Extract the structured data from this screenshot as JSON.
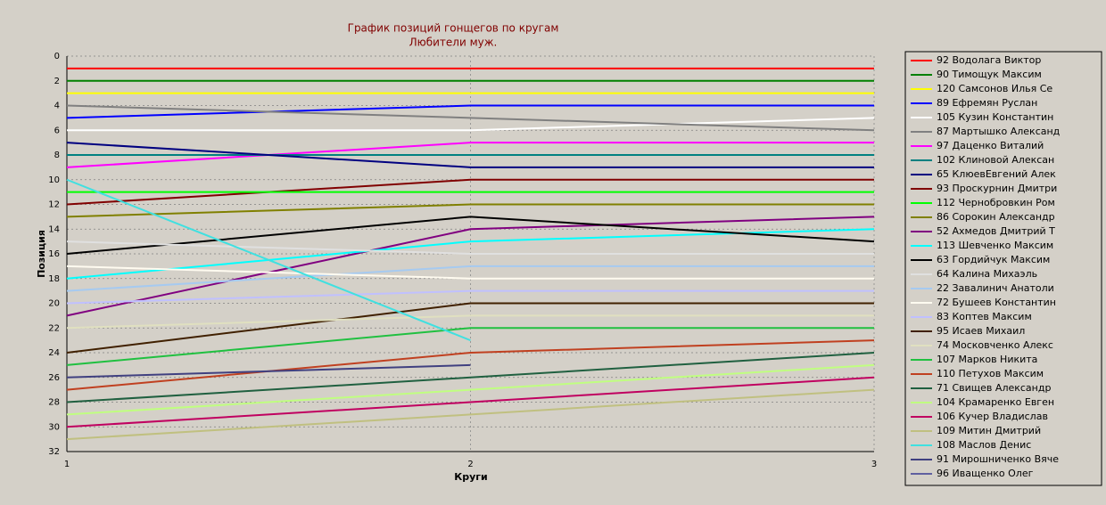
{
  "chart_data": {
    "type": "line",
    "title": "График позиций гонщегов по кругам",
    "subtitle": "Любители муж.",
    "x_label": "Круги",
    "y_label": "Позиция",
    "x": [
      1,
      2,
      3
    ],
    "xlim": [
      1,
      3
    ],
    "xticks": [
      1,
      2,
      3
    ],
    "ylim": [
      32,
      0
    ],
    "yticks": [
      0,
      2,
      4,
      6,
      8,
      10,
      12,
      14,
      16,
      18,
      20,
      22,
      24,
      26,
      28,
      30,
      32
    ],
    "grid": true,
    "legend": "right",
    "series": [
      {
        "name": "92 Водолага Виктор",
        "color": "#ff0000",
        "values": [
          1,
          1,
          1
        ]
      },
      {
        "name": "90 Тимощук Максим",
        "color": "#008000",
        "values": [
          2,
          2,
          2
        ]
      },
      {
        "name": "120 Самсонов Илья Се",
        "color": "#ffff00",
        "values": [
          3,
          3,
          3
        ]
      },
      {
        "name": "89 Ефремян Руслан",
        "color": "#0000ff",
        "values": [
          5,
          4,
          4
        ]
      },
      {
        "name": "105 Кузин Константин",
        "color": "#ffffff",
        "values": [
          6,
          6,
          5
        ]
      },
      {
        "name": "87 Мартышко Александ",
        "color": "#808080",
        "values": [
          4,
          5,
          6
        ]
      },
      {
        "name": "97 Даценко Виталий",
        "color": "#ff00ff",
        "values": [
          9,
          7,
          7
        ]
      },
      {
        "name": "102 Клиновой Алексан",
        "color": "#008080",
        "values": [
          8,
          8,
          8
        ]
      },
      {
        "name": "65 КлюевЕвгений Алек",
        "color": "#000080",
        "values": [
          7,
          9,
          9
        ]
      },
      {
        "name": "93 Проскурнин Дмитри",
        "color": "#800000",
        "values": [
          12,
          10,
          10
        ]
      },
      {
        "name": "112 Чернобровкин Ром",
        "color": "#00ff00",
        "values": [
          11,
          11,
          11
        ]
      },
      {
        "name": "86 Сорокин Александр",
        "color": "#808000",
        "values": [
          13,
          12,
          12
        ]
      },
      {
        "name": "52 Ахмедов Дмитрий Т",
        "color": "#800080",
        "values": [
          21,
          14,
          13
        ]
      },
      {
        "name": "113 Шевченко Максим",
        "color": "#00ffff",
        "values": [
          18,
          15,
          14
        ]
      },
      {
        "name": "63 Гордийчук Максим",
        "color": "#000000",
        "values": [
          16,
          13,
          15
        ]
      },
      {
        "name": "64 Калина Михаэль",
        "color": "#e0e0e0",
        "values": [
          15,
          16,
          16
        ]
      },
      {
        "name": "22 Завалинич Анатоли",
        "color": "#a6caf0",
        "values": [
          19,
          17,
          17
        ]
      },
      {
        "name": "72 Бушеев Константин",
        "color": "#fffbf0",
        "values": [
          17,
          18,
          18
        ]
      },
      {
        "name": "83 Коптев Максим",
        "color": "#c0c0ff",
        "values": [
          20,
          19,
          19
        ]
      },
      {
        "name": "95 Исаев Михаил",
        "color": "#402000",
        "values": [
          24,
          20,
          20
        ]
      },
      {
        "name": "74 Московченко Алекс",
        "color": "#e0e0c0",
        "values": [
          22,
          21,
          21
        ]
      },
      {
        "name": "107 Марков Никита",
        "color": "#20c040",
        "values": [
          25,
          22,
          22
        ]
      },
      {
        "name": "110 Петухов Максим",
        "color": "#c04020",
        "values": [
          27,
          24,
          23
        ]
      },
      {
        "name": "71 Свищев Александр",
        "color": "#206040",
        "values": [
          28,
          26,
          24
        ]
      },
      {
        "name": "104 Крамаренко Евген",
        "color": "#c0ff80",
        "values": [
          29,
          27,
          25
        ]
      },
      {
        "name": "106 Кучер Владислав",
        "color": "#c00060",
        "values": [
          30,
          28,
          26
        ]
      },
      {
        "name": "109 Митин Дмитрий",
        "color": "#c0c080",
        "values": [
          31,
          29,
          27
        ]
      },
      {
        "name": "108 Маслов Денис",
        "color": "#40e0e0",
        "values": [
          10,
          23,
          null
        ]
      },
      {
        "name": "91 Мирошниченко Вяче",
        "color": "#404080",
        "values": [
          26,
          25,
          null
        ]
      },
      {
        "name": "96 Иващенко Олег",
        "color": "#6060a0",
        "values": [
          null,
          null,
          null
        ]
      }
    ]
  }
}
